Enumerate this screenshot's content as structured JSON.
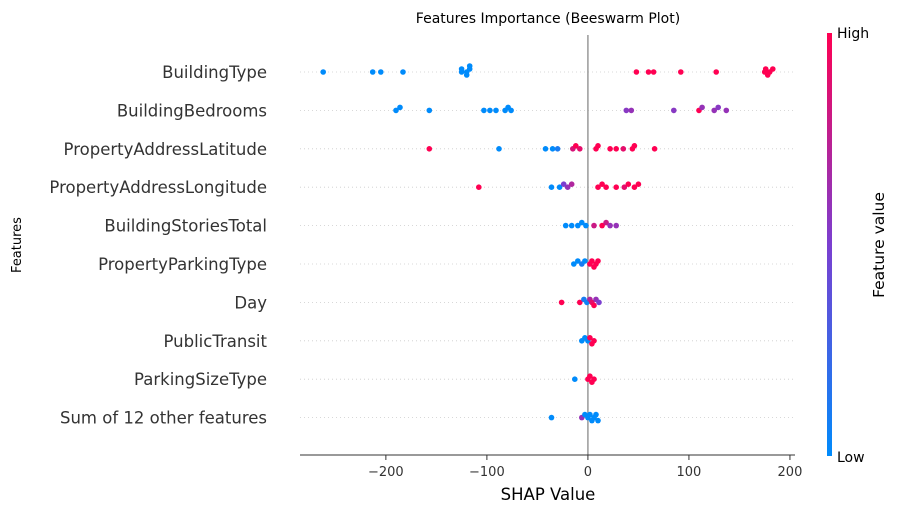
{
  "chart_data": {
    "type": "scatter",
    "subtype": "beeswarm",
    "title": "Features Importance (Beeswarm Plot)",
    "xlabel": "SHAP Value",
    "ylabel": "Features",
    "xlim": [
      -285,
      205
    ],
    "xticks": [
      -200,
      -100,
      0,
      100,
      200
    ],
    "xtick_labels": [
      "−200",
      "−100",
      "0",
      "100",
      "200"
    ],
    "colorbar": {
      "title": "Feature value",
      "high_label": "High",
      "low_label": "Low",
      "low_color": "#008bfb",
      "mid_color": "#7b3fd0",
      "high_color": "#ff0052"
    },
    "features": [
      {
        "name": "BuildingType",
        "points": [
          {
            "x": -262,
            "c": 0.0
          },
          {
            "x": -213,
            "c": 0.0
          },
          {
            "x": -205,
            "c": 0.0
          },
          {
            "x": -183,
            "c": 0.0
          },
          {
            "x": -125,
            "c": 0.0
          },
          {
            "x": -120,
            "c": 0.0
          },
          {
            "x": -117,
            "c": 0.0
          },
          {
            "x": -125,
            "c": 0.0,
            "r": 1
          },
          {
            "x": -120,
            "c": 0.0,
            "r": 1
          },
          {
            "x": -117,
            "c": 0.0,
            "r": 1
          },
          {
            "x": 48,
            "c": 1.0
          },
          {
            "x": 60,
            "c": 1.0
          },
          {
            "x": 65,
            "c": 1.0
          },
          {
            "x": 92,
            "c": 1.0
          },
          {
            "x": 127,
            "c": 1.0
          },
          {
            "x": 175,
            "c": 1.0
          },
          {
            "x": 180,
            "c": 1.0
          },
          {
            "x": 176,
            "c": 1.0
          },
          {
            "x": 178,
            "c": 1.0
          },
          {
            "x": 183,
            "c": 1.0
          }
        ]
      },
      {
        "name": "BuildingBedrooms",
        "points": [
          {
            "x": -190,
            "c": 0.0
          },
          {
            "x": -186,
            "c": 0.0
          },
          {
            "x": -157,
            "c": 0.0
          },
          {
            "x": -103,
            "c": 0.0
          },
          {
            "x": -97,
            "c": 0.0
          },
          {
            "x": -91,
            "c": 0.0
          },
          {
            "x": -82,
            "c": 0.0
          },
          {
            "x": -79,
            "c": 0.0
          },
          {
            "x": -76,
            "c": 0.0
          },
          {
            "x": 38,
            "c": 0.55
          },
          {
            "x": 43,
            "c": 0.6
          },
          {
            "x": 85,
            "c": 0.55
          },
          {
            "x": 110,
            "c": 1.0
          },
          {
            "x": 113,
            "c": 0.6
          },
          {
            "x": 125,
            "c": 0.6
          },
          {
            "x": 129,
            "c": 0.55
          },
          {
            "x": 137,
            "c": 0.6
          }
        ]
      },
      {
        "name": "PropertyAddressLatitude",
        "points": [
          {
            "x": -157,
            "c": 1.0
          },
          {
            "x": -88,
            "c": 0.0
          },
          {
            "x": -42,
            "c": 0.0
          },
          {
            "x": -35,
            "c": 0.0
          },
          {
            "x": -30,
            "c": 0.1
          },
          {
            "x": -15,
            "c": 0.85
          },
          {
            "x": -12,
            "c": 1.0
          },
          {
            "x": -8,
            "c": 0.9
          },
          {
            "x": 8,
            "c": 1.0
          },
          {
            "x": 10,
            "c": 1.0
          },
          {
            "x": 22,
            "c": 1.0
          },
          {
            "x": 28,
            "c": 1.0
          },
          {
            "x": 35,
            "c": 0.9
          },
          {
            "x": 44,
            "c": 1.0
          },
          {
            "x": 46,
            "c": 1.0
          },
          {
            "x": 66,
            "c": 1.0
          }
        ]
      },
      {
        "name": "PropertyAddressLongitude",
        "points": [
          {
            "x": -108,
            "c": 1.0
          },
          {
            "x": -36,
            "c": 0.0
          },
          {
            "x": -28,
            "c": 0.0
          },
          {
            "x": -24,
            "c": 0.5
          },
          {
            "x": -20,
            "c": 0.6
          },
          {
            "x": -16,
            "c": 0.7
          },
          {
            "x": 10,
            "c": 1.0
          },
          {
            "x": 14,
            "c": 1.0
          },
          {
            "x": 18,
            "c": 1.0
          },
          {
            "x": 28,
            "c": 1.0
          },
          {
            "x": 36,
            "c": 0.9
          },
          {
            "x": 40,
            "c": 1.0
          },
          {
            "x": 46,
            "c": 1.0
          },
          {
            "x": 50,
            "c": 1.0
          }
        ]
      },
      {
        "name": "BuildingStoriesTotal",
        "points": [
          {
            "x": -22,
            "c": 0.0
          },
          {
            "x": -16,
            "c": 0.0
          },
          {
            "x": -10,
            "c": 0.0
          },
          {
            "x": -6,
            "c": 0.0
          },
          {
            "x": -2,
            "c": 0.0
          },
          {
            "x": 6,
            "c": 0.8
          },
          {
            "x": 14,
            "c": 1.0
          },
          {
            "x": 18,
            "c": 0.8
          },
          {
            "x": 22,
            "c": 0.6
          },
          {
            "x": 28,
            "c": 0.6
          }
        ]
      },
      {
        "name": "PropertyParkingType",
        "points": [
          {
            "x": -14,
            "c": 0.0
          },
          {
            "x": -10,
            "c": 0.0
          },
          {
            "x": -6,
            "c": 0.1
          },
          {
            "x": -3,
            "c": 0.0
          },
          {
            "x": 2,
            "c": 1.0
          },
          {
            "x": 4,
            "c": 1.0
          },
          {
            "x": 6,
            "c": 1.0
          },
          {
            "x": 8,
            "c": 1.0
          },
          {
            "x": 10,
            "c": 1.0
          }
        ]
      },
      {
        "name": "Day",
        "points": [
          {
            "x": -26,
            "c": 1.0
          },
          {
            "x": -8,
            "c": 1.0
          },
          {
            "x": -4,
            "c": 0.1
          },
          {
            "x": -1,
            "c": 0.05
          },
          {
            "x": 2,
            "c": 0.7
          },
          {
            "x": 4,
            "c": 0.9
          },
          {
            "x": 6,
            "c": 1.0
          },
          {
            "x": 8,
            "c": 0.6
          },
          {
            "x": 11,
            "c": 0.5
          }
        ]
      },
      {
        "name": "PublicTransit",
        "points": [
          {
            "x": -6,
            "c": 0.0
          },
          {
            "x": -3,
            "c": 0.0
          },
          {
            "x": 0,
            "c": 0.0
          },
          {
            "x": 2,
            "c": 1.0
          },
          {
            "x": 4,
            "c": 1.0
          },
          {
            "x": 6,
            "c": 1.0
          }
        ]
      },
      {
        "name": "ParkingSizeType",
        "points": [
          {
            "x": -13,
            "c": 0.0
          },
          {
            "x": 0,
            "c": 1.0
          },
          {
            "x": 2,
            "c": 1.0
          },
          {
            "x": 4,
            "c": 1.0
          },
          {
            "x": 6,
            "c": 1.0
          }
        ]
      },
      {
        "name": "Sum of 12 other features",
        "points": [
          {
            "x": -36,
            "c": 0.0
          },
          {
            "x": -6,
            "c": 0.6
          },
          {
            "x": -3,
            "c": 0.0
          },
          {
            "x": 0,
            "c": 0.0
          },
          {
            "x": 2,
            "c": 0.0
          },
          {
            "x": 4,
            "c": 0.0
          },
          {
            "x": 6,
            "c": 0.0
          },
          {
            "x": 8,
            "c": 0.0
          },
          {
            "x": 10,
            "c": 0.0
          }
        ]
      }
    ],
    "grid": false,
    "zero_line": true
  }
}
